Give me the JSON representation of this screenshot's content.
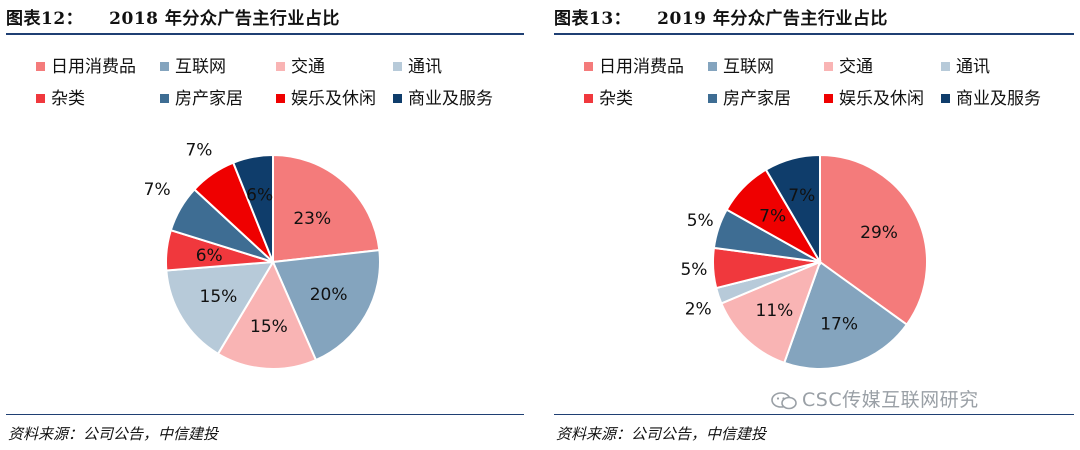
{
  "charts": [
    {
      "figure_number": "图表12：",
      "title": "2018 年分众广告主行业占比",
      "source": "资料来源：公司公告，中信建投"
    },
    {
      "figure_number": "图表13：",
      "title": "2019 年分众广告主行业占比",
      "source": "资料来源：公司公告，中信建投"
    }
  ],
  "legend": [
    {
      "name": "日用消费品",
      "color": "#f47b7b"
    },
    {
      "name": "互联网",
      "color": "#84a4be"
    },
    {
      "name": "交通",
      "color": "#f9b4b4"
    },
    {
      "name": "通讯",
      "color": "#b7cad9"
    },
    {
      "name": "杂类",
      "color": "#f0383d"
    },
    {
      "name": "房产家居",
      "color": "#3e6d93"
    },
    {
      "name": "娱乐及休闲",
      "color": "#ef0000"
    },
    {
      "name": "商业及服务",
      "color": "#0f3d6b"
    }
  ],
  "chart_data": [
    {
      "type": "pie",
      "title": "2018 年分众广告主行业占比",
      "categories": [
        "日用消费品",
        "互联网",
        "交通",
        "通讯",
        "杂类",
        "房产家居",
        "娱乐及休闲",
        "商业及服务"
      ],
      "values": [
        23,
        20,
        15,
        15,
        6,
        7,
        7,
        6
      ],
      "labels": [
        "23%",
        "20%",
        "15%",
        "15%",
        "6%",
        "7%",
        "7%",
        "6%"
      ],
      "start": "12 o'clock",
      "direction": "clockwise"
    },
    {
      "type": "pie",
      "title": "2019 年分众广告主行业占比",
      "categories": [
        "日用消费品",
        "互联网",
        "交通",
        "通讯",
        "杂类",
        "房产家居",
        "娱乐及休闲",
        "商业及服务"
      ],
      "values": [
        29,
        17,
        11,
        2,
        5,
        5,
        7,
        7
      ],
      "labels": [
        "29%",
        "17%",
        "11%",
        "2%",
        "5%",
        "5%",
        "7%",
        "7%"
      ],
      "start": "12 o'clock",
      "direction": "clockwise"
    }
  ],
  "watermark": "CSC传媒互联网研究"
}
